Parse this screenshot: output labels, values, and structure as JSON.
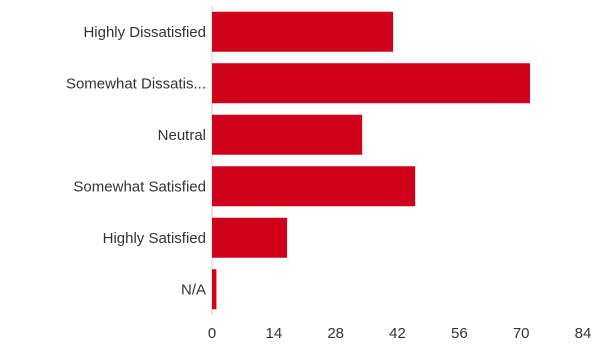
{
  "chart_data": {
    "type": "bar",
    "orientation": "horizontal",
    "categories": [
      "Highly Dissatisfied",
      "Somewhat Dissatis...",
      "Neutral",
      "Somewhat Satisfied",
      "Highly Satisfied",
      "N/A"
    ],
    "values": [
      41,
      72,
      34,
      46,
      17,
      1
    ],
    "title": "",
    "xlabel": "",
    "ylabel": "",
    "xlim": [
      0,
      84
    ],
    "ticks": [
      "0",
      "14",
      "28",
      "42",
      "56",
      "70",
      "84"
    ],
    "grid": false,
    "legend": "none",
    "bar_color": "#d0011b"
  }
}
